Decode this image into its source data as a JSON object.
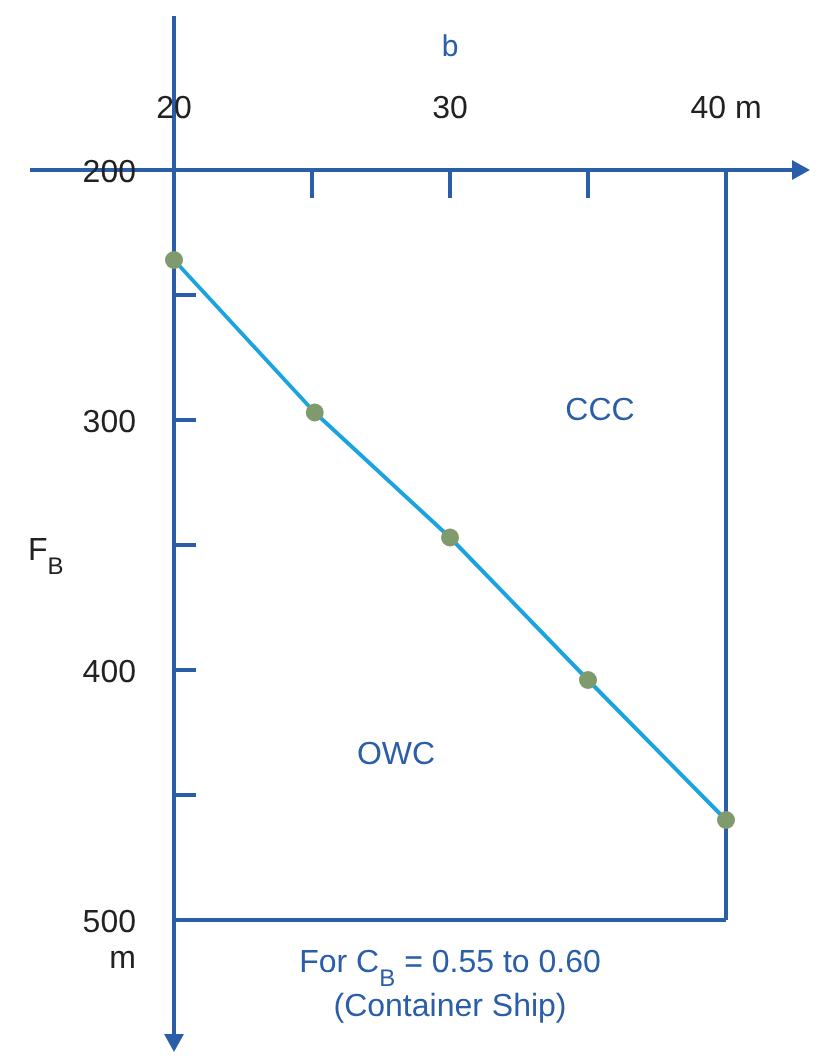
{
  "chart_data": {
    "type": "line",
    "xlabel": "b",
    "ylabel": "F$_{B}$",
    "x": [
      20,
      25.1,
      30,
      35,
      40
    ],
    "series": [
      {
        "color": "#1ba3e0",
        "values": [
          236,
          297,
          347,
          404,
          460
        ]
      }
    ],
    "marker": "circle",
    "line_style": "solid",
    "grid": false,
    "xlim": [
      20,
      40
    ],
    "xticks": [
      20,
      {
        "value": 25,
        "label": null
      },
      30,
      {
        "value": 35,
        "label": null
      },
      {
        "value": 40,
        "label": "40 m"
      }
    ],
    "ylim": [
      500,
      200
    ],
    "yticks": [
      200,
      {
        "value": 250,
        "label": null
      },
      300,
      {
        "value": 350,
        "label": null
      },
      400,
      {
        "value": 450,
        "label": null
      },
      {
        "value": 500,
        "label": "500\nm"
      }
    ],
    "ref_lines": [
      {
        "axis": "x",
        "value": 40,
        "color": "#2a5ea8"
      },
      {
        "axis": "y",
        "value": 500,
        "color": "#2a5ea8"
      }
    ],
    "annotations": [
      "CCC",
      "OWC",
      "For C$_{B}$ = 0.55 to 0.60\n(Container Ship)"
    ]
  }
}
